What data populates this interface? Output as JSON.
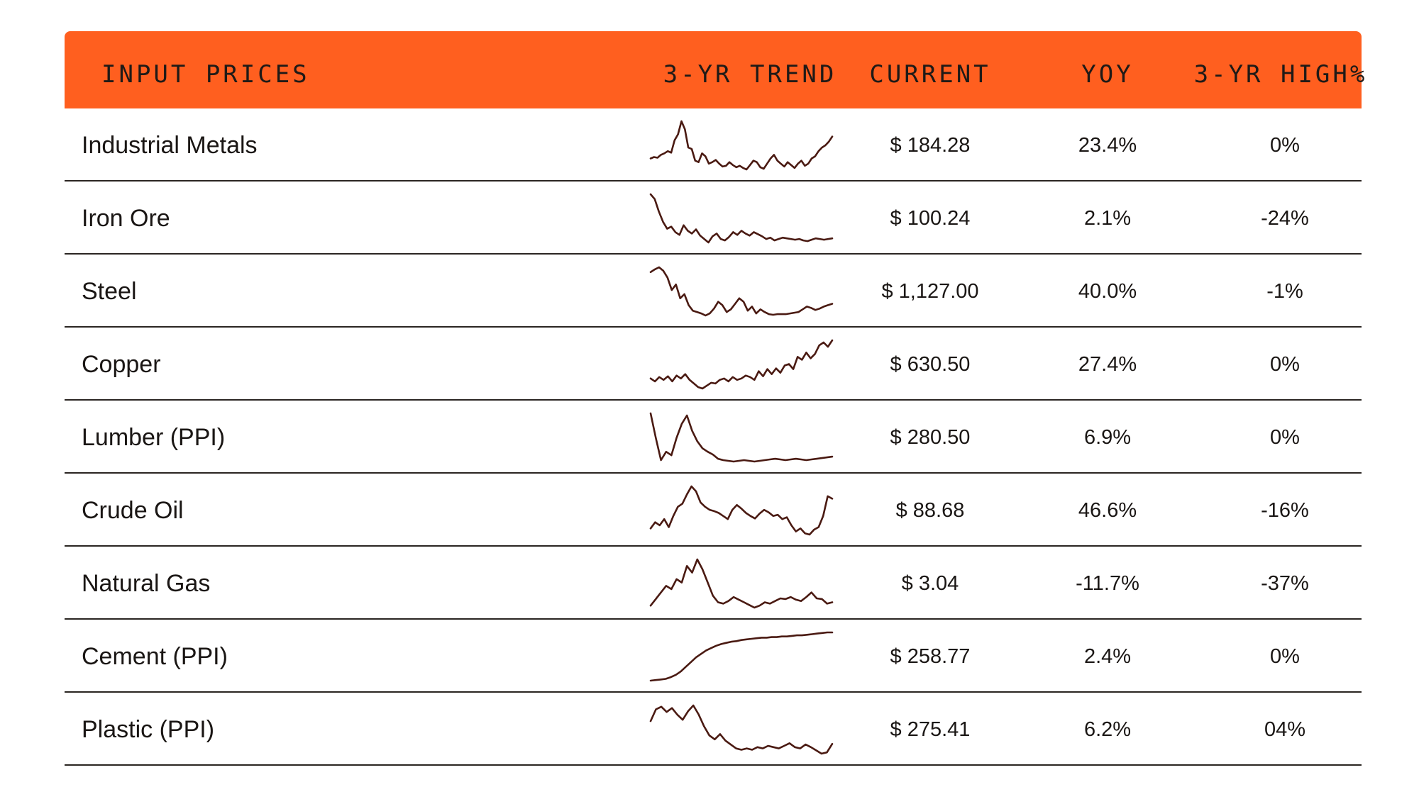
{
  "header": {
    "name_label": "INPUT PRICES",
    "trend_label": "3-YR TREND",
    "current_label": "CURRENT",
    "yoy_label": "YOY",
    "high_label": "3-YR HIGH%"
  },
  "colors": {
    "header_bg": "#FF5F1F",
    "sparkline": "#4a1a12",
    "divider": "#2a2522"
  },
  "chart_data": {
    "type": "table",
    "columns": [
      "INPUT PRICES",
      "3-YR TREND",
      "CURRENT",
      "YOY",
      "3-YR HIGH%"
    ],
    "rows": [
      {
        "name": "Industrial Metals",
        "current": "$ 184.28",
        "yoy": "23.4%",
        "high": "0%",
        "trend": [
          45,
          47,
          46,
          50,
          52,
          55,
          53,
          70,
          78,
          96,
          85,
          60,
          58,
          42,
          40,
          52,
          48,
          38,
          40,
          43,
          38,
          34,
          35,
          40,
          36,
          33,
          35,
          32,
          30,
          36,
          42,
          40,
          33,
          31,
          38,
          45,
          50,
          42,
          38,
          34,
          40,
          36,
          32,
          38,
          42,
          35,
          38,
          45,
          48,
          55,
          60,
          63,
          68,
          75
        ]
      },
      {
        "name": "Iron Ore",
        "current": "$ 100.24",
        "yoy": "2.1%",
        "high": "-24%",
        "trend": [
          95,
          88,
          70,
          55,
          45,
          48,
          40,
          36,
          50,
          42,
          38,
          44,
          35,
          30,
          25,
          34,
          38,
          30,
          28,
          33,
          40,
          36,
          42,
          38,
          35,
          40,
          37,
          34,
          30,
          32,
          28,
          30,
          32,
          31,
          30,
          29,
          30,
          28,
          27,
          29,
          31,
          30,
          29,
          30,
          31
        ]
      },
      {
        "name": "Steel",
        "current": "$ 1,127.00",
        "yoy": "40.0%",
        "high": "-1%",
        "trend": [
          88,
          92,
          95,
          90,
          80,
          62,
          70,
          50,
          56,
          40,
          32,
          30,
          28,
          25,
          28,
          35,
          45,
          40,
          30,
          34,
          42,
          50,
          45,
          32,
          38,
          28,
          34,
          30,
          27,
          26,
          27,
          27,
          27,
          28,
          29,
          30,
          34,
          38,
          36,
          33,
          35,
          38,
          40,
          42
        ]
      },
      {
        "name": "Copper",
        "current": "$ 630.50",
        "yoy": "27.4%",
        "high": "0%",
        "trend": [
          42,
          38,
          44,
          40,
          45,
          38,
          46,
          42,
          48,
          40,
          35,
          30,
          28,
          32,
          36,
          35,
          40,
          42,
          38,
          44,
          40,
          42,
          46,
          44,
          40,
          52,
          45,
          55,
          48,
          56,
          50,
          60,
          62,
          55,
          72,
          68,
          78,
          70,
          76,
          88,
          92,
          86,
          95
        ]
      },
      {
        "name": "Lumber (PPI)",
        "current": "$ 280.50",
        "yoy": "6.9%",
        "high": "0%",
        "trend": [
          95,
          60,
          28,
          40,
          35,
          60,
          80,
          92,
          70,
          55,
          45,
          40,
          36,
          30,
          28,
          27,
          26,
          27,
          28,
          27,
          26,
          27,
          28,
          29,
          30,
          29,
          28,
          29,
          30,
          29,
          28,
          29,
          30,
          31,
          32,
          33
        ]
      },
      {
        "name": "Crude Oil",
        "current": "$ 88.68",
        "yoy": "46.6%",
        "high": "-16%",
        "trend": [
          20,
          30,
          25,
          35,
          22,
          40,
          55,
          60,
          75,
          88,
          80,
          62,
          55,
          50,
          48,
          45,
          40,
          35,
          50,
          58,
          52,
          45,
          40,
          36,
          44,
          50,
          46,
          40,
          42,
          35,
          38,
          25,
          15,
          20,
          12,
          10,
          18,
          22,
          40,
          72,
          68
        ]
      },
      {
        "name": "Natural Gas",
        "current": "$ 3.04",
        "yoy": "-11.7%",
        "high": "-37%",
        "trend": [
          25,
          35,
          45,
          55,
          50,
          65,
          60,
          85,
          75,
          95,
          80,
          60,
          40,
          30,
          28,
          32,
          38,
          34,
          30,
          26,
          22,
          25,
          30,
          28,
          32,
          36,
          35,
          38,
          34,
          32,
          38,
          45,
          36,
          35,
          28,
          30
        ]
      },
      {
        "name": "Cement (PPI)",
        "current": "$ 258.77",
        "yoy": "2.4%",
        "high": "0%",
        "trend": [
          10,
          11,
          12,
          13,
          16,
          20,
          26,
          34,
          42,
          50,
          56,
          62,
          66,
          70,
          73,
          75,
          77,
          78,
          80,
          81,
          82,
          83,
          84,
          84,
          85,
          85,
          86,
          86,
          87,
          88,
          88,
          89,
          90,
          91,
          92,
          93,
          93
        ]
      },
      {
        "name": "Plastic (PPI)",
        "current": "$ 275.41",
        "yoy": "6.2%",
        "high": "04%",
        "trend": [
          70,
          88,
          92,
          84,
          90,
          80,
          72,
          85,
          94,
          80,
          62,
          48,
          42,
          50,
          40,
          34,
          28,
          26,
          28,
          26,
          30,
          28,
          32,
          30,
          28,
          32,
          36,
          30,
          28,
          34,
          30,
          25,
          20,
          22,
          35
        ]
      }
    ]
  }
}
